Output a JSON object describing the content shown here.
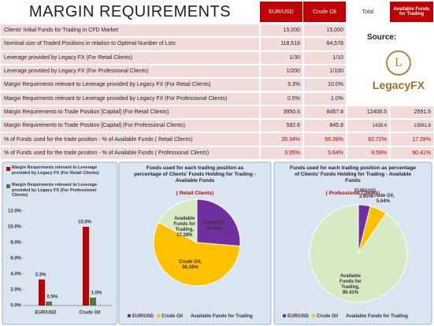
{
  "table": {
    "title": "MARGIN REQUIREMENTS",
    "columns": [
      "EUR/USD",
      "Crude Oil",
      "Total",
      "Available Funds for Trading"
    ],
    "rows": [
      [
        "Clients' Initial Funds for Trading in CFD Market",
        "15,000",
        "15,000"
      ],
      [
        "Nominal size of Traded Positions in relation to Optimal Number of Lots",
        "118,518",
        "84,578"
      ],
      [
        "Leverage provided by Legacy FX (For Retail Clients)",
        "1/30",
        "1/10"
      ],
      [
        "Leverage provided by Legacy FX (For Professional Clients)",
        "1/200",
        "1/100"
      ],
      [
        "Margin Requirments relevant to Leverage provided by Legacy FX (For Retail Clients)",
        "3.3%",
        "10.0%"
      ],
      [
        "Margin Requirments relevant to Leverage provided by Legacy FX (For Professional Clients)",
        "0.5%",
        "1.0%"
      ],
      [
        "Margin Requirements to Trade Position [Capital]  (For Retail Clients)",
        "3950.6",
        "8457.8",
        "12408.5",
        "2591.5"
      ],
      [
        "Margin Requirements to Trade Position [Capital]  (For Professional Clients)",
        "592.6",
        "845.8",
        "1438.4",
        "13561.6"
      ],
      [
        "% of Funds used for the trade position - % of Available Funds ( Retail Clients)",
        "26.34%",
        "56.39%",
        "82.72%",
        "17.28%"
      ],
      [
        "% of Funds used for the trade position - % of Available Funds ( Professional Clients)",
        "3.95%",
        "5.64%",
        "9.59%",
        "90.41%"
      ]
    ]
  },
  "source": {
    "label": "Source:",
    "logo": "LegacyFX"
  },
  "chart_data": [
    {
      "type": "bar",
      "categories": [
        "EUR/USD",
        "Crude Oil"
      ],
      "series": [
        {
          "name": "Margin Requirments relevant to Leverage provided by Legacy FX (For Retail Clients)",
          "color": "#c00000",
          "values": [
            3.3,
            10.0
          ],
          "value_labels": [
            "3.3%",
            "10.0%"
          ]
        },
        {
          "name": "Margin Requirments relevant to Leverage provided by Legacy FX (For Professional Clients)",
          "color": "#4f7a3a",
          "values": [
            0.5,
            1.0
          ],
          "value_labels": [
            "0.5%",
            "1.0%"
          ]
        }
      ],
      "ylim": [
        0,
        12
      ],
      "yticks": [
        {
          "value": 0,
          "label": "0.0%"
        },
        {
          "value": 2,
          "label": "2.0%"
        },
        {
          "value": 4,
          "label": "4.0%"
        },
        {
          "value": 6,
          "label": "6.0%"
        },
        {
          "value": 8,
          "label": "8.0%"
        },
        {
          "value": 10,
          "label": "10.0%"
        },
        {
          "value": 12,
          "label": "12.0%"
        }
      ]
    },
    {
      "type": "pie",
      "title": "Funds used for each trading position as percentage of Clients' Funds Holding for Trading - Available Funds",
      "subtitle": "( Retail Clients)",
      "categories": [
        "EUR/USD",
        "Crude Oil",
        "Available Funds for Trading"
      ],
      "colors": [
        "#7030a0",
        "#ffc000",
        "#d7eac4"
      ],
      "values": [
        26.34,
        56.39,
        17.28
      ],
      "value_labels": [
        "EUR/USD, 26.34%",
        "Crude Oil, 56.39%",
        "Available Funds for Trading, 17.28%"
      ]
    },
    {
      "type": "pie",
      "title": "Funds used for each trading position as percentage of Clients' Funds Holding for Trading - Available Funds",
      "subtitle": "( Professional Clients)",
      "categories": [
        "EUR/USD",
        "Crude Oil",
        "Available Funds for Trading"
      ],
      "colors": [
        "#7030a0",
        "#ffc000",
        "#d7eac4"
      ],
      "values": [
        3.95,
        5.64,
        90.41
      ],
      "value_labels": [
        "EUR/USD, 3.95%",
        "Crude Oil, 5.64%",
        "Available Funds for Trading, 90.41%"
      ]
    }
  ]
}
